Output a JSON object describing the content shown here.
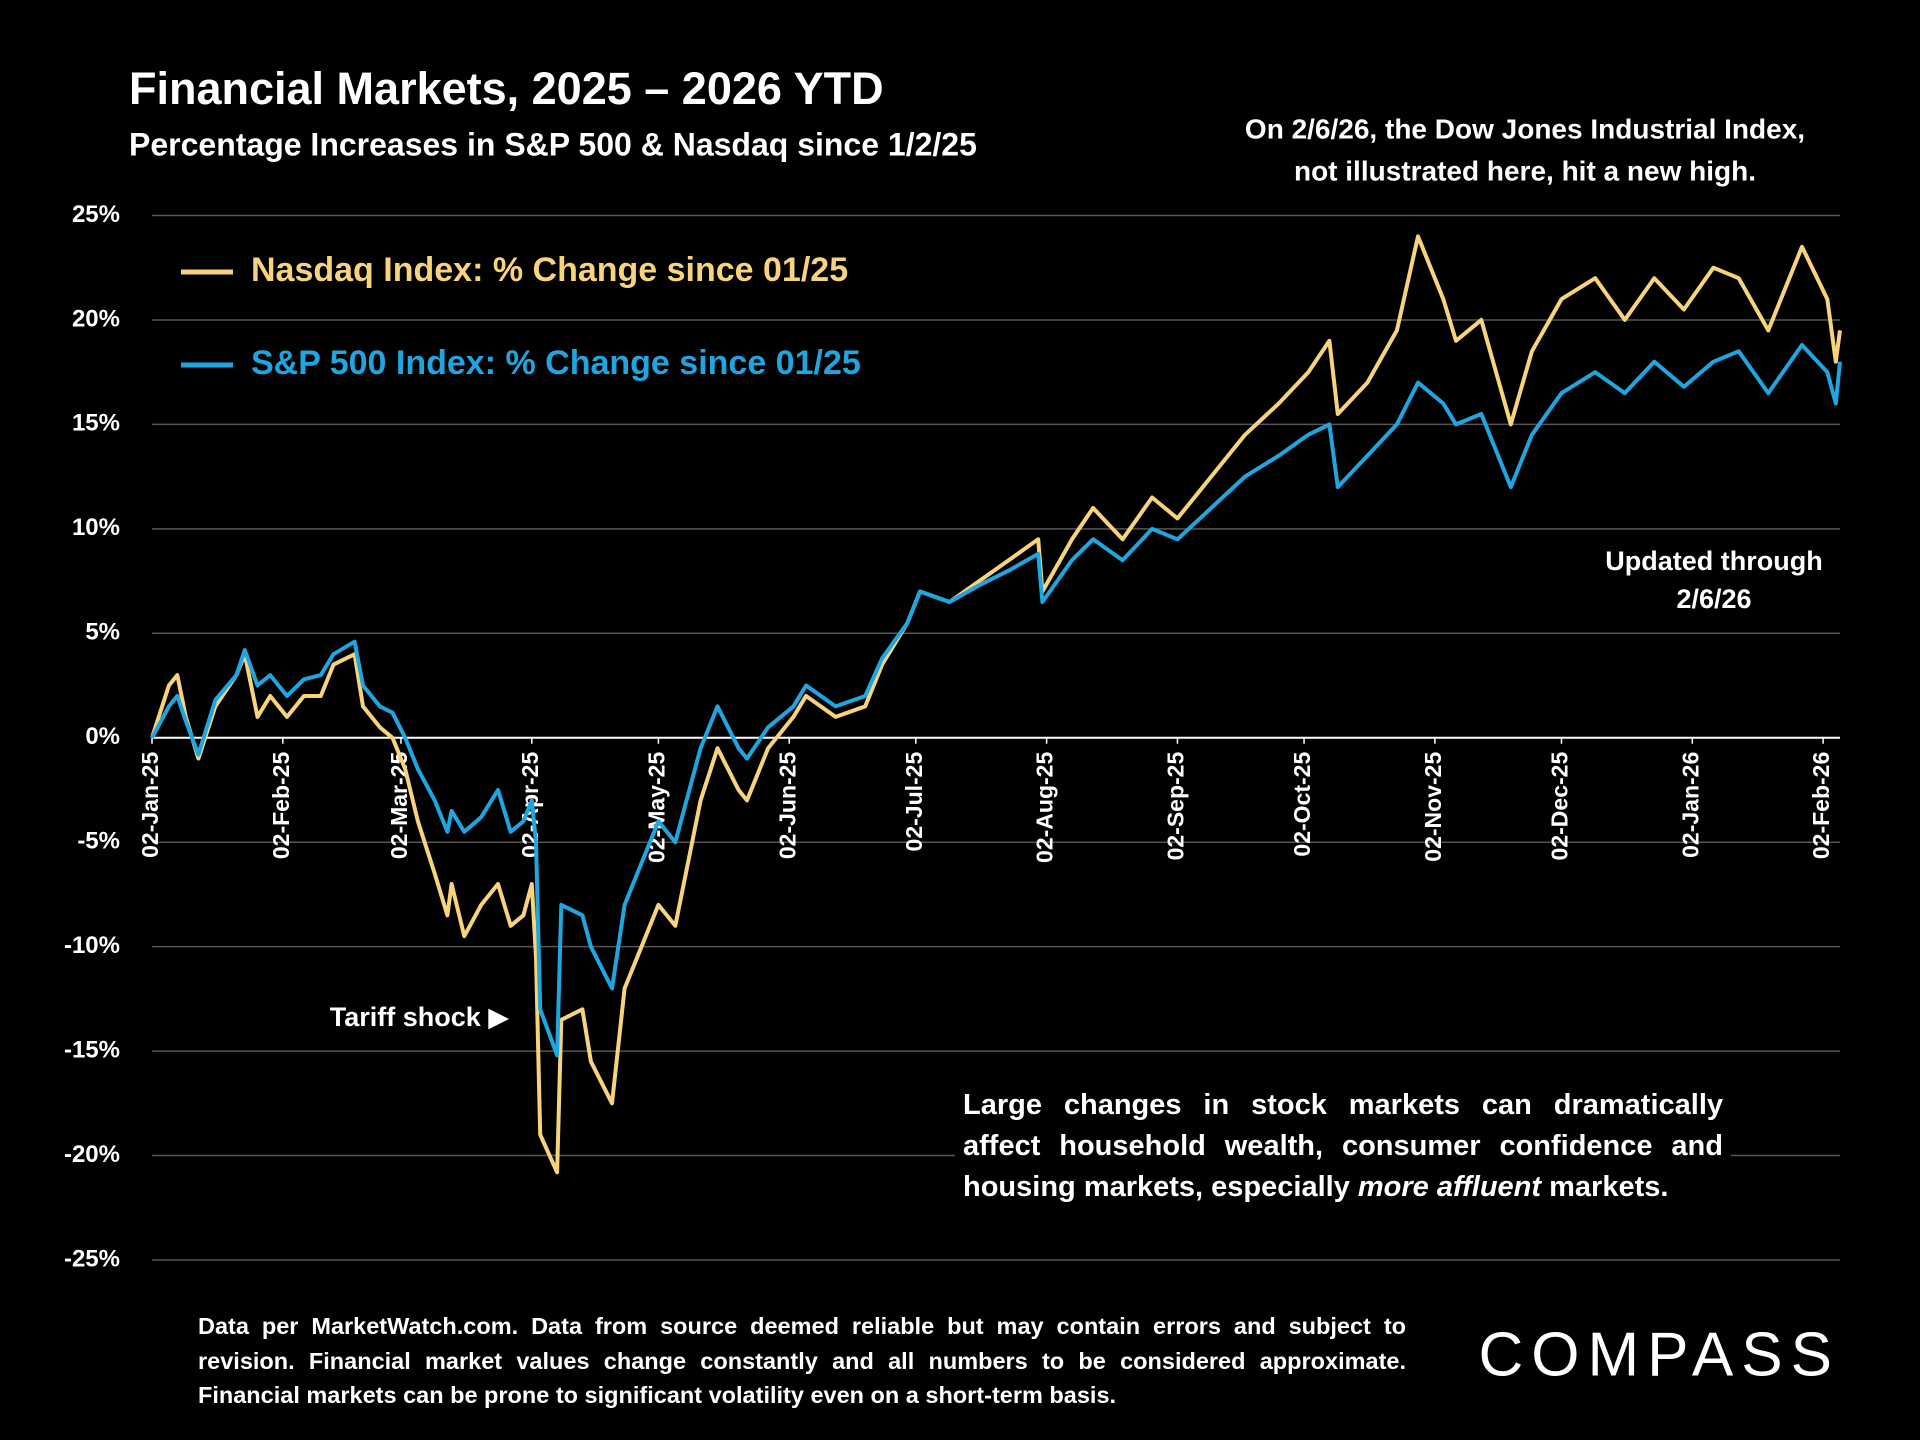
{
  "chart_data": {
    "type": "line",
    "title": "Financial Markets, 2025 – 2026 YTD",
    "subtitle": "Percentage Increases in S&P 500 & Nasdaq since 1/2/25",
    "note_lines": [
      "On 2/6/26, the Dow Jones Industrial Index,",
      "not illustrated here, hit a new high."
    ],
    "updated_lines": [
      "Updated through",
      "2/6/26"
    ],
    "tariff_annotation": "Tariff shock ▶",
    "commentary_parts": [
      "Large changes in stock markets can dramatically affect household wealth, consumer confidence and housing markets, especially ",
      "more affluent",
      " markets."
    ],
    "footnote": "Data per MarketWatch.com. Data from source deemed reliable but may contain errors and subject to revision. Financial market values change constantly and all numbers to be considered approximate. Financial markets can be prone to significant volatility even on a short-term basis.",
    "brand": "COMPASS",
    "x": [
      "2025-01-02",
      "2025-01-06",
      "2025-01-08",
      "2025-01-10",
      "2025-01-13",
      "2025-01-17",
      "2025-01-22",
      "2025-01-24",
      "2025-01-27",
      "2025-01-30",
      "2025-02-03",
      "2025-02-07",
      "2025-02-11",
      "2025-02-14",
      "2025-02-19",
      "2025-02-21",
      "2025-02-25",
      "2025-02-28",
      "2025-03-03",
      "2025-03-06",
      "2025-03-10",
      "2025-03-13",
      "2025-03-14",
      "2025-03-17",
      "2025-03-21",
      "2025-03-25",
      "2025-03-28",
      "2025-03-31",
      "2025-04-02",
      "2025-04-03",
      "2025-04-04",
      "2025-04-08",
      "2025-04-09",
      "2025-04-14",
      "2025-04-16",
      "2025-04-21",
      "2025-04-24",
      "2025-04-28",
      "2025-05-02",
      "2025-05-06",
      "2025-05-12",
      "2025-05-16",
      "2025-05-21",
      "2025-05-23",
      "2025-05-28",
      "2025-06-03",
      "2025-06-06",
      "2025-06-13",
      "2025-06-20",
      "2025-06-24",
      "2025-06-30",
      "2025-07-03",
      "2025-07-10",
      "2025-07-17",
      "2025-07-24",
      "2025-07-31",
      "2025-08-01",
      "2025-08-08",
      "2025-08-13",
      "2025-08-20",
      "2025-08-27",
      "2025-09-02",
      "2025-09-10",
      "2025-09-18",
      "2025-09-26",
      "2025-10-03",
      "2025-10-08",
      "2025-10-10",
      "2025-10-17",
      "2025-10-24",
      "2025-10-29",
      "2025-11-04",
      "2025-11-07",
      "2025-11-13",
      "2025-11-20",
      "2025-11-25",
      "2025-12-02",
      "2025-12-10",
      "2025-12-17",
      "2025-12-24",
      "2025-12-31",
      "2026-01-07",
      "2026-01-13",
      "2026-01-20",
      "2026-01-28",
      "2026-02-03",
      "2026-02-05",
      "2026-02-06"
    ],
    "series": [
      {
        "name": "Nasdaq Index: % Change since 01/25",
        "color": "#f7d47c",
        "values": [
          0,
          2.5,
          3.0,
          1.0,
          -1.0,
          1.5,
          3.0,
          4.0,
          1.0,
          2.0,
          1.0,
          2.0,
          2.0,
          3.5,
          4.0,
          1.5,
          0.5,
          0.0,
          -1.5,
          -4.0,
          -6.5,
          -8.5,
          -7.0,
          -9.5,
          -8.0,
          -7.0,
          -9.0,
          -8.5,
          -7.0,
          -10.5,
          -19.0,
          -20.8,
          -13.5,
          -13.0,
          -15.5,
          -17.5,
          -12.0,
          -10.0,
          -8.0,
          -9.0,
          -3.0,
          -0.5,
          -2.5,
          -3.0,
          -0.5,
          1.0,
          2.0,
          1.0,
          1.5,
          3.5,
          5.5,
          7.0,
          6.5,
          7.5,
          8.5,
          9.5,
          7.0,
          9.5,
          11.0,
          9.5,
          11.5,
          10.5,
          12.5,
          14.5,
          16.0,
          17.5,
          19.0,
          15.5,
          17.0,
          19.5,
          24.0,
          21.0,
          19.0,
          20.0,
          15.0,
          18.5,
          21.0,
          22.0,
          20.0,
          22.0,
          20.5,
          22.5,
          22.0,
          19.5,
          23.5,
          21.0,
          18.0,
          19.5
        ]
      },
      {
        "name": "S&P 500 Index: % Change since 01/25",
        "color": "#1fa6e0",
        "values": [
          0,
          1.5,
          2.0,
          0.8,
          -0.8,
          1.8,
          3.0,
          4.2,
          2.5,
          3.0,
          2.0,
          2.8,
          3.0,
          4.0,
          4.6,
          2.5,
          1.5,
          1.2,
          0.0,
          -1.5,
          -3.0,
          -4.5,
          -3.5,
          -4.5,
          -3.8,
          -2.5,
          -4.5,
          -4.0,
          -3.0,
          -5.0,
          -13.0,
          -15.2,
          -8.0,
          -8.5,
          -10.0,
          -12.0,
          -8.0,
          -6.0,
          -4.0,
          -5.0,
          -0.5,
          1.5,
          -0.5,
          -1.0,
          0.5,
          1.5,
          2.5,
          1.5,
          2.0,
          3.8,
          5.5,
          7.0,
          6.5,
          7.3,
          8.0,
          8.8,
          6.5,
          8.5,
          9.5,
          8.5,
          10.0,
          9.5,
          11.0,
          12.5,
          13.5,
          14.5,
          15.0,
          12.0,
          13.5,
          15.0,
          17.0,
          16.0,
          15.0,
          15.5,
          12.0,
          14.5,
          16.5,
          17.5,
          16.5,
          18.0,
          16.8,
          18.0,
          18.5,
          16.5,
          18.8,
          17.5,
          16.0,
          18.0
        ]
      }
    ],
    "xlim": [
      "2025-01-02",
      "2026-02-06"
    ],
    "xticks": [
      {
        "value": "2025-01-02",
        "label": "02-Jan-25"
      },
      {
        "value": "2025-02-02",
        "label": "02-Feb-25"
      },
      {
        "value": "2025-03-02",
        "label": "02-Mar-25"
      },
      {
        "value": "2025-04-02",
        "label": "02-Apr-25"
      },
      {
        "value": "2025-05-02",
        "label": "02-May-25"
      },
      {
        "value": "2025-06-02",
        "label": "02-Jun-25"
      },
      {
        "value": "2025-07-02",
        "label": "02-Jul-25"
      },
      {
        "value": "2025-08-02",
        "label": "02-Aug-25"
      },
      {
        "value": "2025-09-02",
        "label": "02-Sep-25"
      },
      {
        "value": "2025-10-02",
        "label": "02-Oct-25"
      },
      {
        "value": "2025-11-02",
        "label": "02-Nov-25"
      },
      {
        "value": "2025-12-02",
        "label": "02-Dec-25"
      },
      {
        "value": "2026-01-02",
        "label": "02-Jan-26"
      },
      {
        "value": "2026-02-02",
        "label": "02-Feb-26"
      }
    ],
    "ylim": [
      -25,
      25
    ],
    "yticks": [
      {
        "value": -25,
        "label": "-25%"
      },
      {
        "value": -20,
        "label": "-20%"
      },
      {
        "value": -15,
        "label": "-15%"
      },
      {
        "value": -10,
        "label": "-10%"
      },
      {
        "value": -5,
        "label": "-5%"
      },
      {
        "value": 0,
        "label": "0%"
      },
      {
        "value": 5,
        "label": "5%"
      },
      {
        "value": 10,
        "label": "10%"
      },
      {
        "value": 15,
        "label": "15%"
      },
      {
        "value": 20,
        "label": "20%"
      },
      {
        "value": 25,
        "label": "25%"
      }
    ],
    "grid": true
  }
}
